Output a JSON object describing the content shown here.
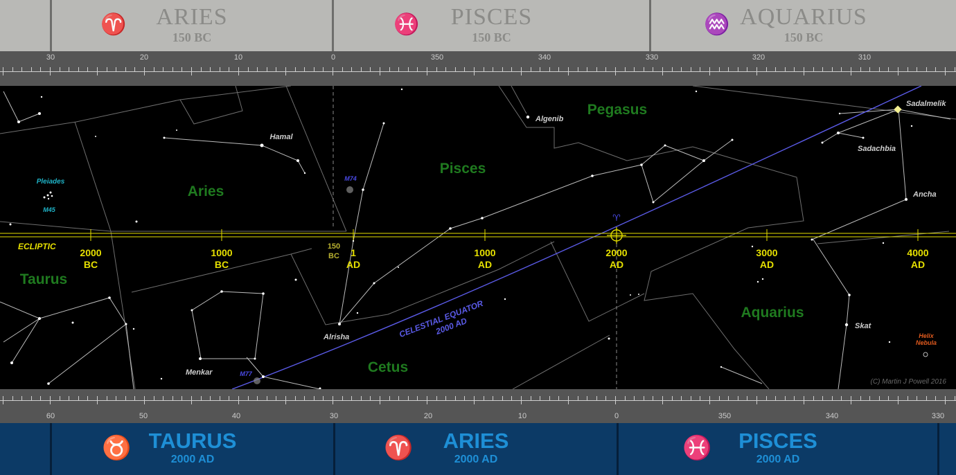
{
  "top_signs": [
    {
      "name": "ARIES",
      "epoch": "150 BC",
      "glyph": "♈"
    },
    {
      "name": "PISCES",
      "epoch": "150 BC",
      "glyph": "♓"
    },
    {
      "name": "AQUARIUS",
      "epoch": "150 BC",
      "glyph": "♒"
    }
  ],
  "bottom_signs": [
    {
      "name": "TAURUS",
      "epoch": "2000 AD",
      "glyph": "♉"
    },
    {
      "name": "ARIES",
      "epoch": "2000 AD",
      "glyph": "♈"
    },
    {
      "name": "PISCES",
      "epoch": "2000 AD",
      "glyph": "♓"
    }
  ],
  "top_scale_labels": [
    "30",
    "20",
    "10",
    "0",
    "350",
    "340",
    "330",
    "320",
    "310"
  ],
  "bottom_scale_labels": [
    "60",
    "50",
    "40",
    "30",
    "20",
    "10",
    "0",
    "350",
    "340",
    "330"
  ],
  "constellations": [
    "Pegasus",
    "Pisces",
    "Aries",
    "Taurus",
    "Aquarius",
    "Cetus"
  ],
  "stars": [
    "Hamal",
    "Algenib",
    "Sadalmelik",
    "Sadachbia",
    "Ancha",
    "Skat",
    "Alrisha",
    "Menkar"
  ],
  "deep_sky": {
    "pleiades": "Pleiades",
    "m45": "M45",
    "m74": "M74",
    "m77": "M77",
    "helix_1": "Helix",
    "helix_2": "Nebula"
  },
  "ecliptic_label": "ECLIPTIC",
  "ecliptic_dates": [
    {
      "top": "2000",
      "bottom": "BC"
    },
    {
      "top": "1000",
      "bottom": "BC"
    },
    {
      "top": "150",
      "bottom": "BC"
    },
    {
      "top": "1",
      "bottom": "AD"
    },
    {
      "top": "1000",
      "bottom": "AD"
    },
    {
      "top": "2000",
      "bottom": "AD"
    },
    {
      "top": "3000",
      "bottom": "AD"
    },
    {
      "top": "4000",
      "bottom": "AD"
    }
  ],
  "equator_label_1": "CELESTIAL EQUATOR",
  "equator_label_2": "2000 AD",
  "vernal_glyph": "♈",
  "credit": "(C) Martin J Powell  2016",
  "colors": {
    "ecliptic": "#e6e000",
    "equator": "#5a5ae6",
    "constellation_name": "#1f7a1f",
    "deep_sky": "#1fb4c8",
    "messier": "#4a4ae6",
    "helix": "#e05a1e"
  }
}
